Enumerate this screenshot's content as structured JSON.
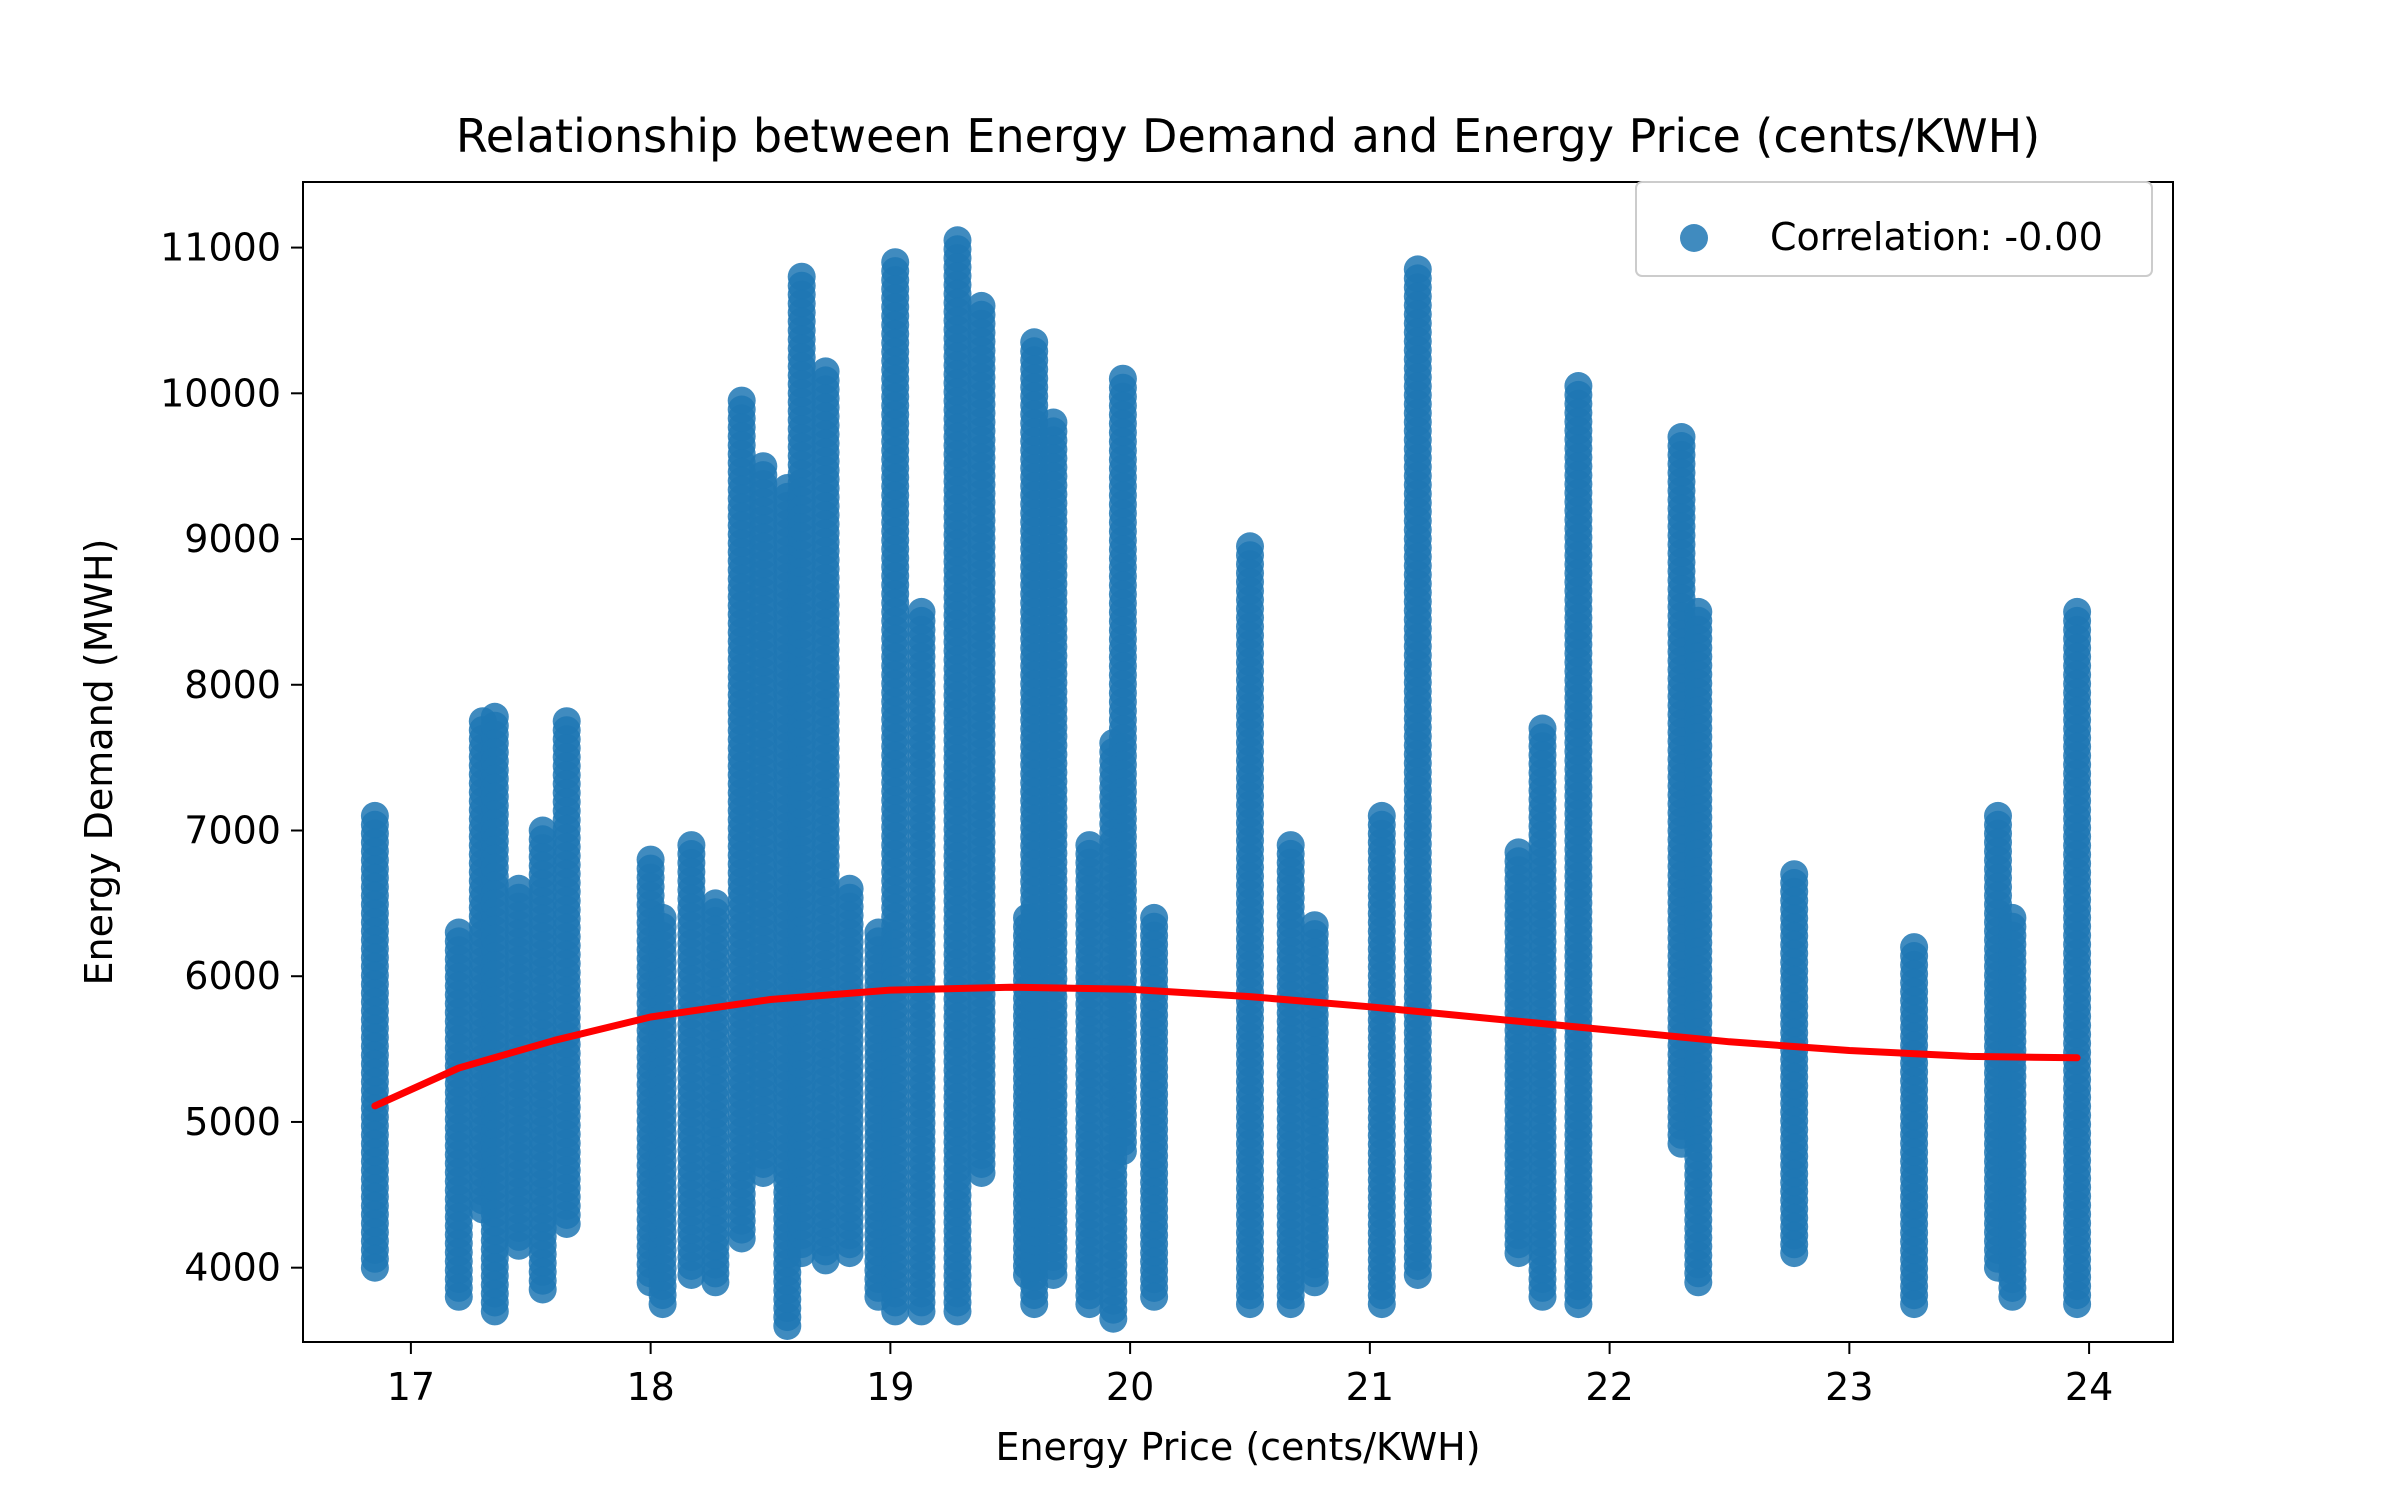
{
  "chart_data": {
    "type": "scatter",
    "title": "Relationship between Energy Demand and Energy Price (cents/KWH)",
    "xlabel": "Energy Price (cents/KWH)",
    "ylabel": "Energy Demand (MWH)",
    "xlim": [
      16.55,
      24.35
    ],
    "ylim": [
      3490,
      11450
    ],
    "x_ticks": [
      "17",
      "18",
      "19",
      "20",
      "21",
      "22",
      "23",
      "24"
    ],
    "y_ticks": [
      "4000",
      "5000",
      "6000",
      "7000",
      "8000",
      "9000",
      "10000",
      "11000"
    ],
    "grid": false,
    "legend": {
      "position": "top-right",
      "entries": [
        "Correlation: -0.00"
      ]
    },
    "point_color": "#1f77b4",
    "series": [
      {
        "name": "Correlation: -0.00",
        "type": "scatter",
        "columns": [
          {
            "x": 16.85,
            "ymin": 4000,
            "ymax": 7100
          },
          {
            "x": 17.2,
            "ymin": 3800,
            "ymax": 6300
          },
          {
            "x": 17.3,
            "ymin": 4400,
            "ymax": 7750
          },
          {
            "x": 17.35,
            "ymin": 3700,
            "ymax": 7780
          },
          {
            "x": 17.45,
            "ymin": 4150,
            "ymax": 6600
          },
          {
            "x": 17.55,
            "ymin": 3850,
            "ymax": 7000
          },
          {
            "x": 17.65,
            "ymin": 4300,
            "ymax": 7750
          },
          {
            "x": 18.0,
            "ymin": 3900,
            "ymax": 6800
          },
          {
            "x": 18.05,
            "ymin": 3750,
            "ymax": 6400
          },
          {
            "x": 18.17,
            "ymin": 3950,
            "ymax": 6900
          },
          {
            "x": 18.27,
            "ymin": 3900,
            "ymax": 6500
          },
          {
            "x": 18.38,
            "ymin": 4200,
            "ymax": 9950
          },
          {
            "x": 18.47,
            "ymin": 4650,
            "ymax": 9500
          },
          {
            "x": 18.57,
            "ymin": 3600,
            "ymax": 9350
          },
          {
            "x": 18.63,
            "ymin": 4100,
            "ymax": 10800
          },
          {
            "x": 18.73,
            "ymin": 4050,
            "ymax": 10150
          },
          {
            "x": 18.83,
            "ymin": 4100,
            "ymax": 6600
          },
          {
            "x": 18.95,
            "ymin": 3800,
            "ymax": 6300
          },
          {
            "x": 19.02,
            "ymin": 3700,
            "ymax": 10900
          },
          {
            "x": 19.13,
            "ymin": 3700,
            "ymax": 8500
          },
          {
            "x": 19.28,
            "ymin": 3700,
            "ymax": 11050
          },
          {
            "x": 19.38,
            "ymin": 4650,
            "ymax": 10600
          },
          {
            "x": 19.57,
            "ymin": 3950,
            "ymax": 6400
          },
          {
            "x": 19.6,
            "ymin": 3750,
            "ymax": 10350
          },
          {
            "x": 19.68,
            "ymin": 3950,
            "ymax": 9800
          },
          {
            "x": 19.83,
            "ymin": 3750,
            "ymax": 6900
          },
          {
            "x": 19.93,
            "ymin": 3650,
            "ymax": 7600
          },
          {
            "x": 19.97,
            "ymin": 4800,
            "ymax": 10100
          },
          {
            "x": 20.1,
            "ymin": 3800,
            "ymax": 6400
          },
          {
            "x": 20.5,
            "ymin": 3750,
            "ymax": 8950
          },
          {
            "x": 20.67,
            "ymin": 3750,
            "ymax": 6900
          },
          {
            "x": 20.77,
            "ymin": 3900,
            "ymax": 6350
          },
          {
            "x": 21.05,
            "ymin": 3750,
            "ymax": 7100
          },
          {
            "x": 21.2,
            "ymin": 3950,
            "ymax": 10850
          },
          {
            "x": 21.62,
            "ymin": 4100,
            "ymax": 6850
          },
          {
            "x": 21.72,
            "ymin": 3800,
            "ymax": 7700
          },
          {
            "x": 21.87,
            "ymin": 3750,
            "ymax": 10050
          },
          {
            "x": 22.3,
            "ymin": 4850,
            "ymax": 9700
          },
          {
            "x": 22.37,
            "ymin": 3900,
            "ymax": 8500
          },
          {
            "x": 22.77,
            "ymin": 4100,
            "ymax": 6700
          },
          {
            "x": 23.27,
            "ymin": 3750,
            "ymax": 6200
          },
          {
            "x": 23.62,
            "ymin": 4000,
            "ymax": 7100
          },
          {
            "x": 23.68,
            "ymin": 3800,
            "ymax": 6400
          },
          {
            "x": 23.95,
            "ymin": 3750,
            "ymax": 8500
          }
        ]
      },
      {
        "type": "line",
        "color": "#ff0000",
        "x": [
          16.85,
          17.2,
          17.6,
          18.0,
          18.5,
          19.0,
          19.5,
          20.0,
          20.5,
          21.0,
          21.5,
          22.0,
          22.5,
          23.0,
          23.5,
          23.95
        ],
        "y": [
          5110,
          5370,
          5560,
          5720,
          5840,
          5905,
          5925,
          5910,
          5860,
          5790,
          5710,
          5630,
          5550,
          5490,
          5450,
          5440
        ]
      }
    ]
  }
}
